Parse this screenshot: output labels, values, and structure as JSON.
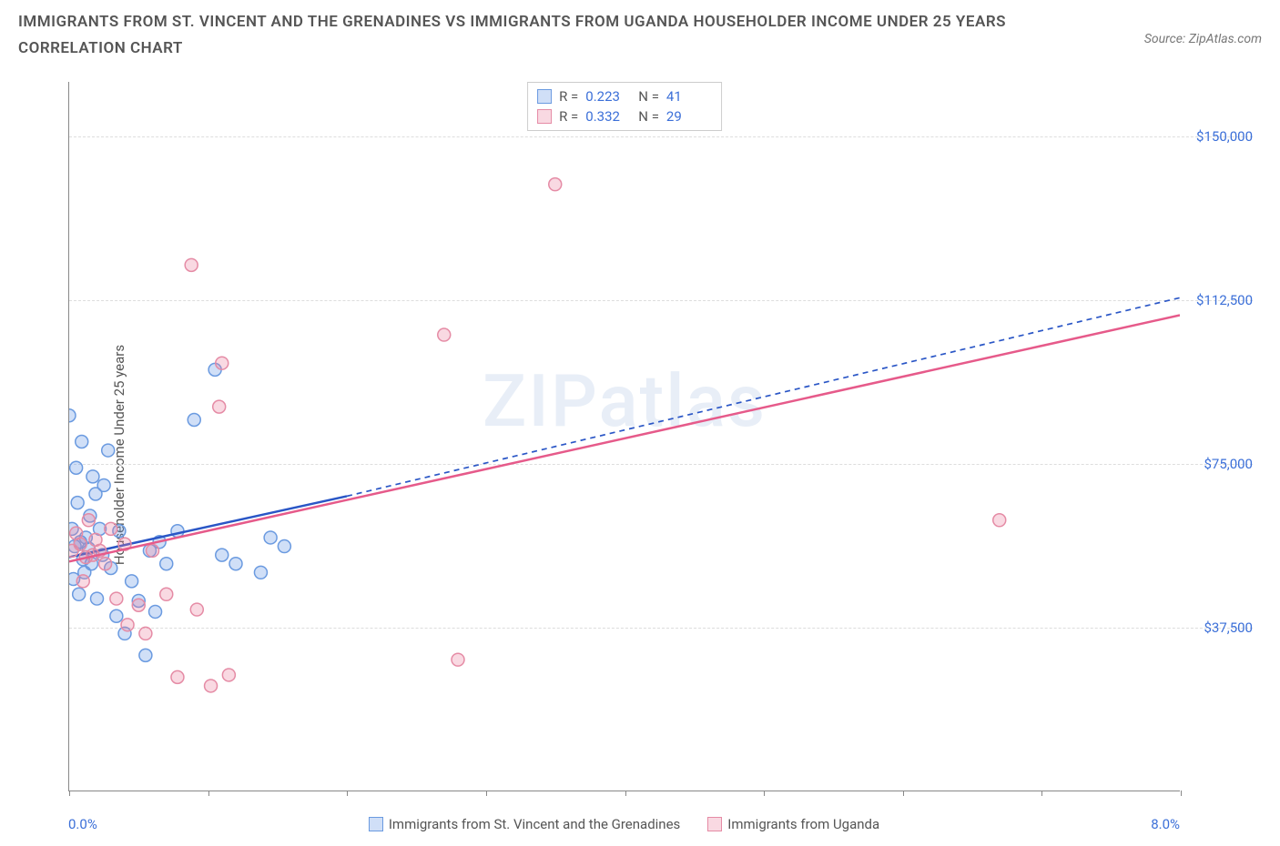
{
  "title": "IMMIGRANTS FROM ST. VINCENT AND THE GRENADINES VS IMMIGRANTS FROM UGANDA HOUSEHOLDER INCOME UNDER 25 YEARS CORRELATION CHART",
  "source": "Source: ZipAtlas.com",
  "ylabel": "Householder Income Under 25 years",
  "watermark": "ZIPatlas",
  "chart": {
    "type": "scatter",
    "xlim": [
      0.0,
      8.0
    ],
    "ylim": [
      0,
      162500
    ],
    "x_tick_positions": [
      0,
      1,
      2,
      3,
      4,
      5,
      6,
      7,
      8
    ],
    "y_ticks": [
      {
        "v": 37500,
        "label": "$37,500"
      },
      {
        "v": 75000,
        "label": "$75,000"
      },
      {
        "v": 112500,
        "label": "$112,500"
      },
      {
        "v": 150000,
        "label": "$150,000"
      }
    ],
    "x_min_label": "0.0%",
    "x_max_label": "8.0%",
    "background_color": "#ffffff",
    "grid_color": "#dddddd",
    "axis_color": "#888888",
    "marker_radius": 7,
    "marker_stroke_width": 1.5,
    "series": [
      {
        "name": "Immigrants from St. Vincent and the Grenadines",
        "fill": "rgba(100,150,230,0.30)",
        "stroke": "#6a9ae0",
        "R": "0.223",
        "N": "41",
        "trend": {
          "x1": 0.0,
          "y1": 53500,
          "x2": 2.0,
          "y2": 67500,
          "solid": true,
          "dash_to_x": 8.0,
          "dash_to_y": 113000,
          "color": "#2a56c6",
          "width": 2.5
        },
        "points": [
          [
            0.0,
            86000
          ],
          [
            0.02,
            60000
          ],
          [
            0.03,
            48500
          ],
          [
            0.04,
            56000
          ],
          [
            0.05,
            74000
          ],
          [
            0.06,
            66000
          ],
          [
            0.07,
            45000
          ],
          [
            0.08,
            57000
          ],
          [
            0.09,
            80000
          ],
          [
            0.1,
            53000
          ],
          [
            0.11,
            50000
          ],
          [
            0.12,
            58000
          ],
          [
            0.14,
            55500
          ],
          [
            0.15,
            63000
          ],
          [
            0.16,
            52000
          ],
          [
            0.17,
            72000
          ],
          [
            0.19,
            68000
          ],
          [
            0.2,
            44000
          ],
          [
            0.22,
            60000
          ],
          [
            0.24,
            54000
          ],
          [
            0.25,
            70000
          ],
          [
            0.28,
            78000
          ],
          [
            0.3,
            51000
          ],
          [
            0.34,
            40000
          ],
          [
            0.36,
            59500
          ],
          [
            0.4,
            36000
          ],
          [
            0.45,
            48000
          ],
          [
            0.5,
            43500
          ],
          [
            0.55,
            31000
          ],
          [
            0.58,
            55000
          ],
          [
            0.62,
            41000
          ],
          [
            0.65,
            57000
          ],
          [
            0.7,
            52000
          ],
          [
            0.78,
            59500
          ],
          [
            0.9,
            85000
          ],
          [
            1.05,
            96500
          ],
          [
            1.1,
            54000
          ],
          [
            1.2,
            52000
          ],
          [
            1.38,
            50000
          ],
          [
            1.45,
            58000
          ],
          [
            1.55,
            56000
          ]
        ]
      },
      {
        "name": "Immigrants from Uganda",
        "fill": "rgba(235,130,160,0.30)",
        "stroke": "#e58ba5",
        "R": "0.332",
        "N": "29",
        "trend": {
          "x1": 0.0,
          "y1": 52500,
          "x2": 8.0,
          "y2": 109000,
          "solid": true,
          "color": "#e65a8a",
          "width": 2.5
        },
        "points": [
          [
            0.02,
            55000
          ],
          [
            0.05,
            59000
          ],
          [
            0.08,
            56500
          ],
          [
            0.1,
            48000
          ],
          [
            0.12,
            53500
          ],
          [
            0.14,
            62000
          ],
          [
            0.17,
            54000
          ],
          [
            0.19,
            57500
          ],
          [
            0.22,
            55000
          ],
          [
            0.26,
            52000
          ],
          [
            0.3,
            60000
          ],
          [
            0.34,
            44000
          ],
          [
            0.4,
            56500
          ],
          [
            0.42,
            38000
          ],
          [
            0.5,
            42500
          ],
          [
            0.55,
            36000
          ],
          [
            0.6,
            55000
          ],
          [
            0.7,
            45000
          ],
          [
            0.78,
            26000
          ],
          [
            0.88,
            120500
          ],
          [
            0.92,
            41500
          ],
          [
            1.02,
            24000
          ],
          [
            1.08,
            88000
          ],
          [
            1.1,
            98000
          ],
          [
            1.15,
            26500
          ],
          [
            2.7,
            104500
          ],
          [
            2.8,
            30000
          ],
          [
            3.5,
            139000
          ],
          [
            6.7,
            62000
          ]
        ]
      }
    ],
    "bottom_legend": [
      {
        "label": "Immigrants from St. Vincent and the Grenadines",
        "fill": "rgba(100,150,230,0.30)",
        "stroke": "#6a9ae0"
      },
      {
        "label": "Immigrants from Uganda",
        "fill": "rgba(235,130,160,0.30)",
        "stroke": "#e58ba5"
      }
    ]
  }
}
